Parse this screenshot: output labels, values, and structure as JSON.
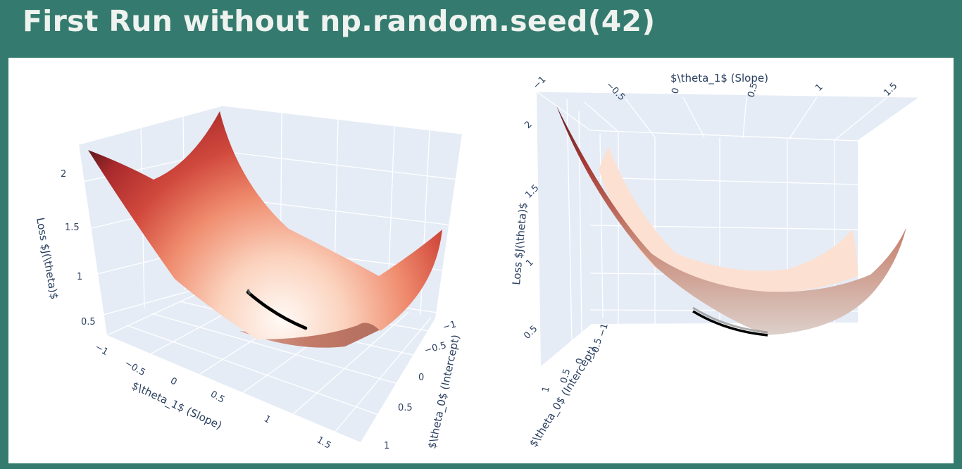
{
  "page": {
    "title": "First Run without np.random.seed(42)"
  },
  "chart_data": [
    {
      "type": "surface3d",
      "view": "perspective",
      "colorscale": "Reds",
      "surface_function": "Loss J(theta) over theta_0 (intercept) and theta_1 (slope)",
      "axes": {
        "x": {
          "label": "$\\theta_1$ (Slope)",
          "ticks": [
            "−1",
            "−0.5",
            "0",
            "0.5",
            "1",
            "1.5"
          ],
          "range": [
            -1,
            1.5
          ]
        },
        "y": {
          "label": "$\\theta_0$ (Intercept)",
          "ticks": [
            "−1",
            "−0.5",
            "0",
            "0.5",
            "1"
          ],
          "range": [
            -1,
            1
          ]
        },
        "z": {
          "label": "Loss $J(\\theta)$",
          "ticks": [
            "0.5",
            "1",
            "1.5",
            "2"
          ],
          "range": [
            0.4,
            2.2
          ]
        }
      },
      "path": {
        "name": "gradient descent path",
        "color": "#000000"
      }
    },
    {
      "type": "surface3d",
      "view": "side",
      "colorscale": "Reds",
      "axes": {
        "x": {
          "label": "$\\theta_1$ (Slope)",
          "ticks": [
            "−1",
            "−0.5",
            "0",
            "0.5",
            "1",
            "1.5"
          ],
          "range": [
            -1,
            1.5
          ]
        },
        "y": {
          "label": "$\\theta_0$ (Intercept)",
          "ticks": [
            "−1",
            "−0.5",
            "0",
            "0.5",
            "1"
          ],
          "range": [
            -1,
            1
          ]
        },
        "z": {
          "label": "Loss $J(\\theta)$",
          "ticks": [
            "0.5",
            "1",
            "1.5",
            "2"
          ],
          "range": [
            0.4,
            2.2
          ]
        }
      },
      "path": {
        "name": "gradient descent path",
        "color": "#000000"
      }
    }
  ]
}
